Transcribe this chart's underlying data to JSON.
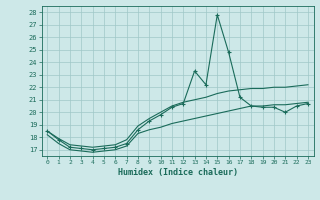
{
  "xlabel": "Humidex (Indice chaleur)",
  "bg_color": "#cde8e8",
  "grid_color": "#b8d8d8",
  "line_color": "#1a6b5a",
  "xlim": [
    -0.5,
    23.5
  ],
  "ylim": [
    16.5,
    28.5
  ],
  "yticks": [
    17,
    18,
    19,
    20,
    21,
    22,
    23,
    24,
    25,
    26,
    27,
    28
  ],
  "xticks": [
    0,
    1,
    2,
    3,
    4,
    5,
    6,
    7,
    8,
    9,
    10,
    11,
    12,
    13,
    14,
    15,
    16,
    17,
    18,
    19,
    20,
    21,
    22,
    23
  ],
  "main_line": [
    18.5,
    17.8,
    17.2,
    17.1,
    17.0,
    17.1,
    17.2,
    17.5,
    18.6,
    19.3,
    19.8,
    20.4,
    20.7,
    23.3,
    22.2,
    27.8,
    24.8,
    21.2,
    20.5,
    20.4,
    20.4,
    20.0,
    20.5,
    20.7
  ],
  "upper_line": [
    18.5,
    17.9,
    17.4,
    17.3,
    17.2,
    17.3,
    17.4,
    17.8,
    18.9,
    19.5,
    20.0,
    20.5,
    20.8,
    21.0,
    21.2,
    21.5,
    21.7,
    21.8,
    21.9,
    21.9,
    22.0,
    22.0,
    22.1,
    22.2
  ],
  "lower_line": [
    18.2,
    17.5,
    17.0,
    16.9,
    16.8,
    16.9,
    17.0,
    17.3,
    18.3,
    18.6,
    18.8,
    19.1,
    19.3,
    19.5,
    19.7,
    19.9,
    20.1,
    20.3,
    20.5,
    20.5,
    20.6,
    20.6,
    20.7,
    20.8
  ]
}
